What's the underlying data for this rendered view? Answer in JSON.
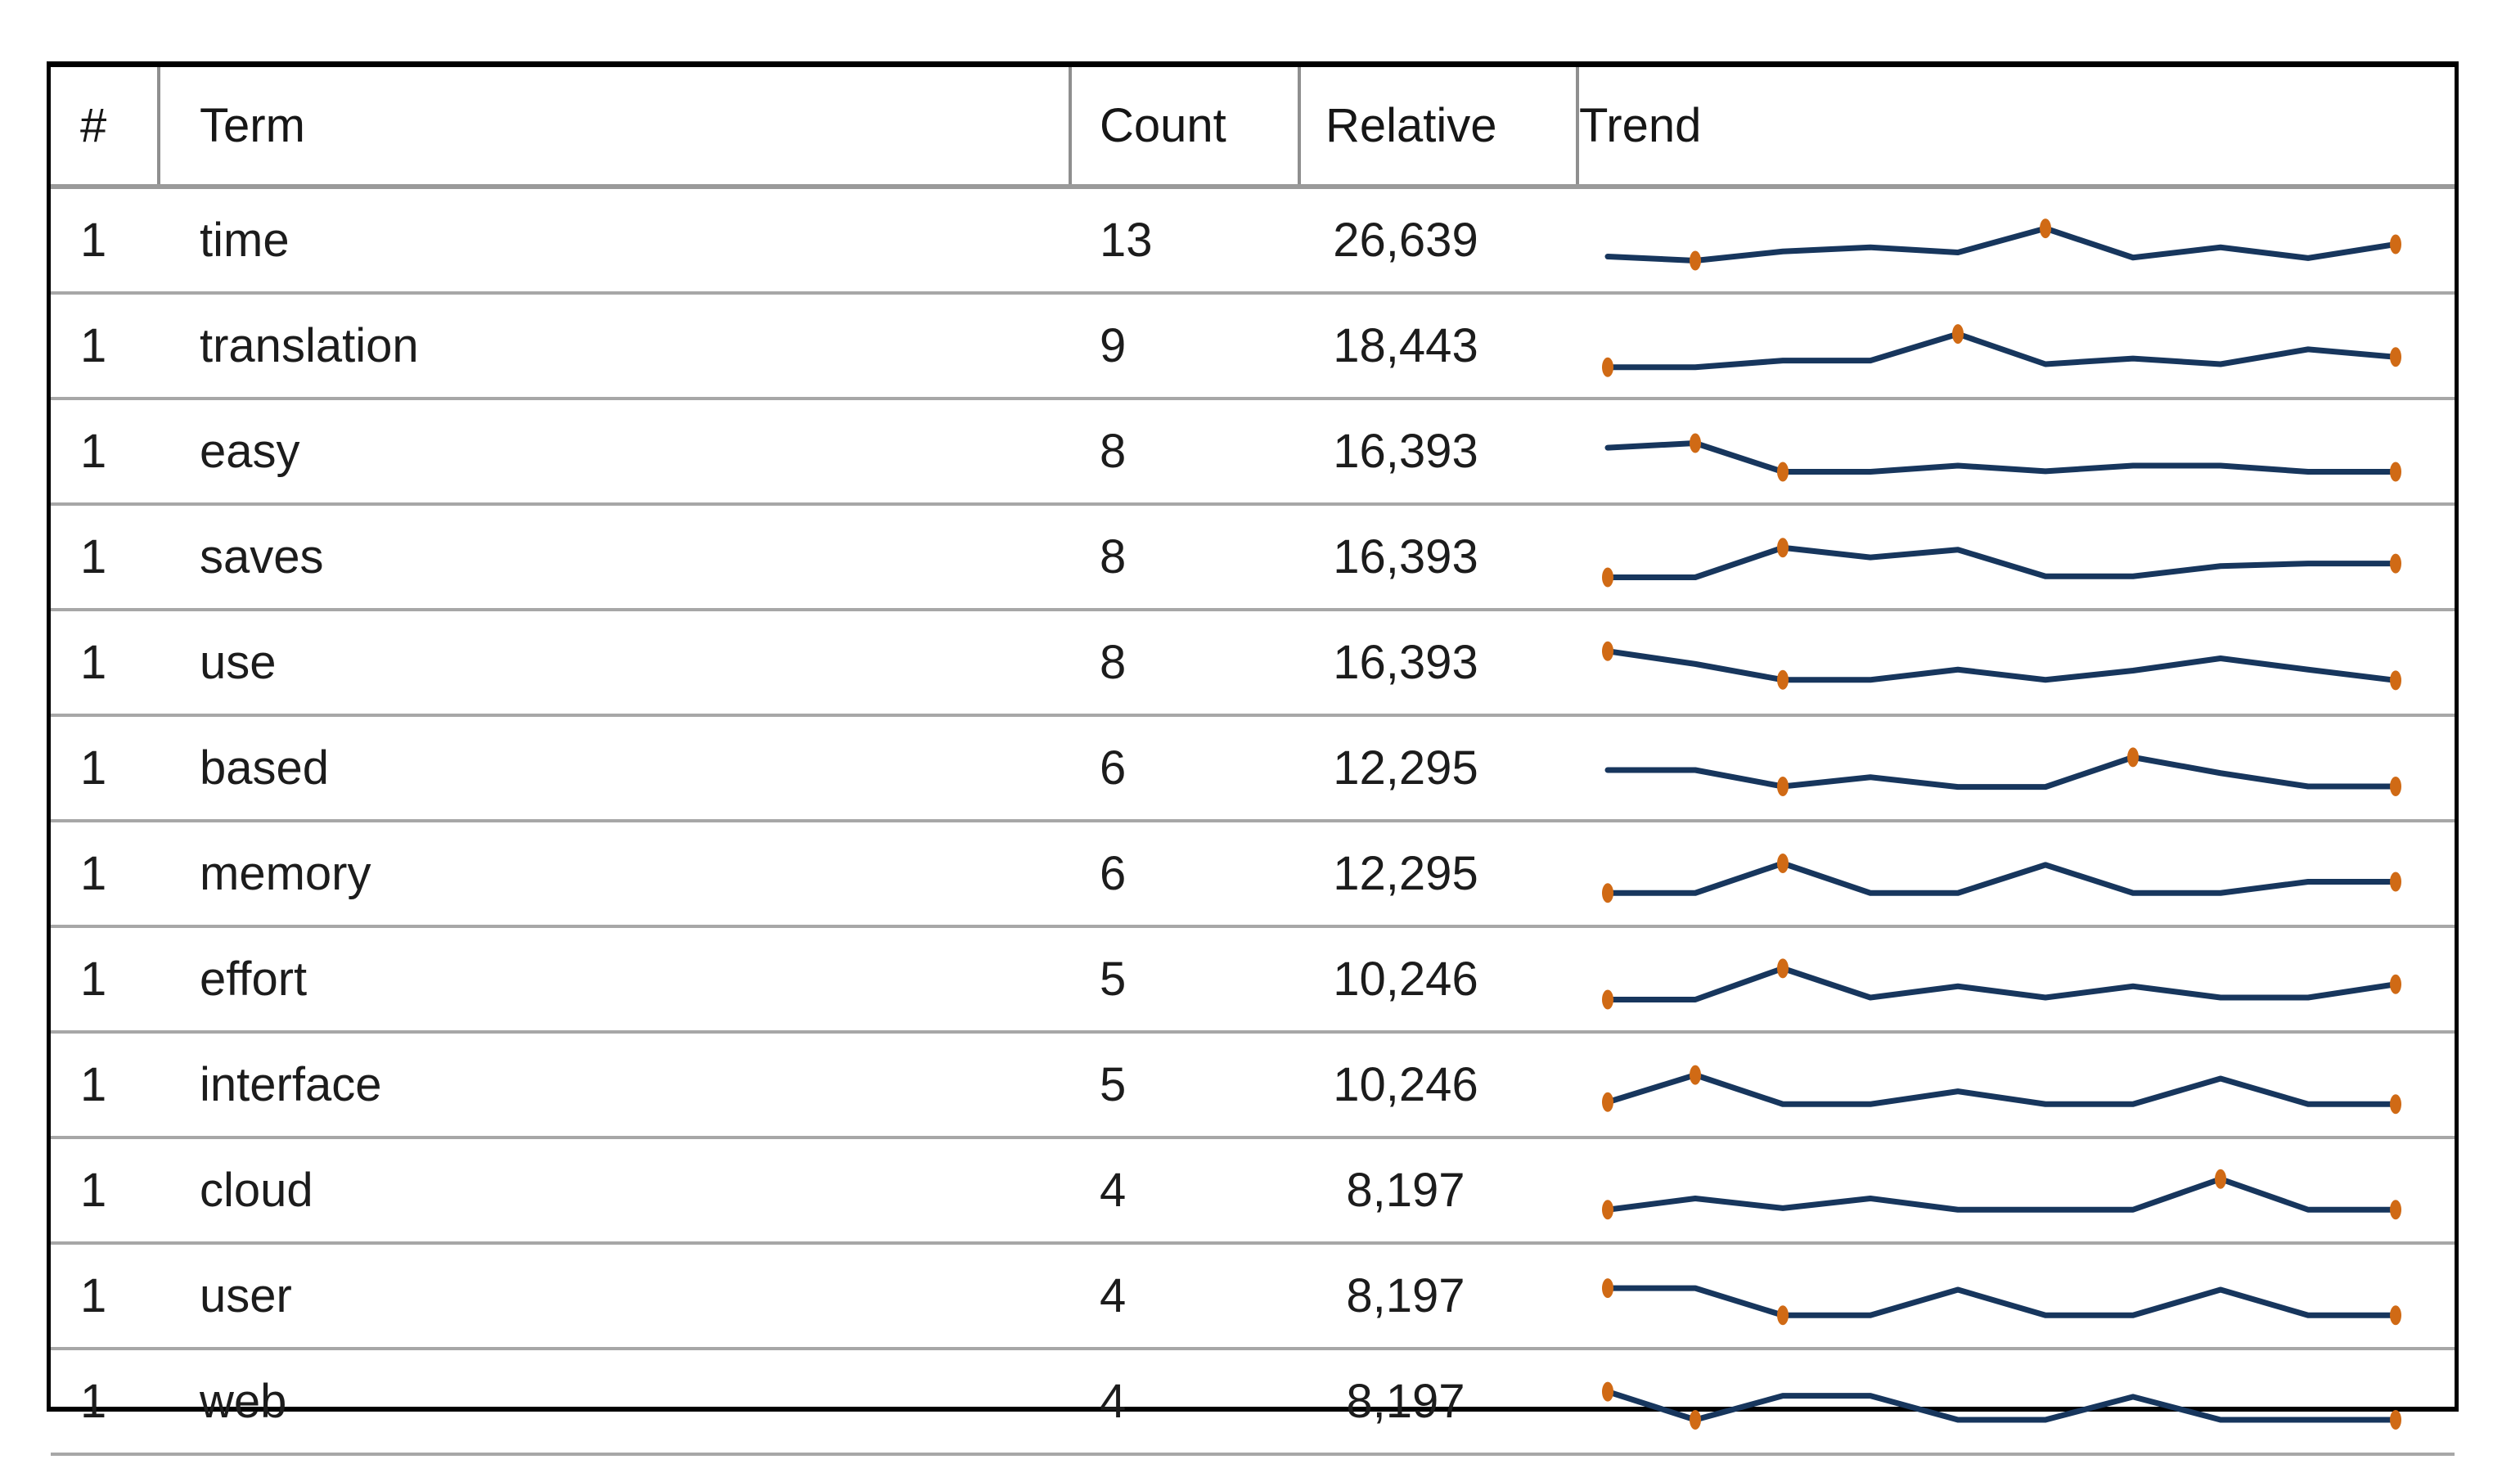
{
  "table": {
    "headers": {
      "rank": "#",
      "term": "Term",
      "count": "Count",
      "relative": "Relative",
      "trend": "Trend"
    },
    "rows": [
      {
        "rank": "1",
        "term": "time",
        "count": "13",
        "relative": "26,639",
        "trend": {
          "values": [
            1.0,
            0.6,
            1.5,
            1.9,
            1.4,
            3.75,
            0.9,
            1.9,
            0.85,
            2.2
          ],
          "markers": [
            1,
            5,
            9
          ]
        }
      },
      {
        "rank": "1",
        "term": "translation",
        "count": "9",
        "relative": "18,443",
        "trend": {
          "values": [
            0.5,
            0.5,
            1.15,
            1.15,
            3.75,
            0.8,
            1.35,
            0.8,
            2.25,
            1.5
          ],
          "markers": [
            0,
            4,
            9
          ]
        }
      },
      {
        "rank": "1",
        "term": "easy",
        "count": "8",
        "relative": "16,393",
        "trend": {
          "values": [
            2.95,
            3.4,
            0.6,
            0.6,
            1.2,
            0.65,
            1.2,
            1.2,
            0.6,
            0.6
          ],
          "markers": [
            1,
            2,
            9
          ]
        }
      },
      {
        "rank": "1",
        "term": "saves",
        "count": "8",
        "relative": "16,393",
        "trend": {
          "values": [
            0.6,
            0.6,
            3.5,
            2.55,
            3.3,
            0.7,
            0.7,
            1.7,
            1.95,
            1.95
          ],
          "markers": [
            0,
            2,
            9
          ]
        }
      },
      {
        "rank": "1",
        "term": "use",
        "count": "8",
        "relative": "16,393",
        "trend": {
          "values": [
            3.7,
            2.45,
            0.9,
            0.9,
            1.9,
            0.9,
            1.8,
            3.0,
            1.9,
            0.85
          ],
          "markers": [
            0,
            2,
            9
          ]
        }
      },
      {
        "rank": "1",
        "term": "based",
        "count": "6",
        "relative": "12,295",
        "trend": {
          "values": [
            2.4,
            2.4,
            0.8,
            1.7,
            0.75,
            0.75,
            3.65,
            2.1,
            0.8,
            0.8
          ],
          "markers": [
            2,
            6,
            9
          ]
        }
      },
      {
        "rank": "1",
        "term": "memory",
        "count": "6",
        "relative": "12,295",
        "trend": {
          "values": [
            0.7,
            0.7,
            3.6,
            0.7,
            0.7,
            3.45,
            0.7,
            0.7,
            1.8,
            1.8
          ],
          "markers": [
            0,
            2,
            9
          ]
        }
      },
      {
        "rank": "1",
        "term": "effort",
        "count": "5",
        "relative": "10,246",
        "trend": {
          "values": [
            0.6,
            0.6,
            3.65,
            0.8,
            1.9,
            0.8,
            1.9,
            0.8,
            0.8,
            2.1
          ],
          "markers": [
            0,
            2,
            9
          ]
        }
      },
      {
        "rank": "1",
        "term": "interface",
        "count": "5",
        "relative": "10,246",
        "trend": {
          "values": [
            0.9,
            3.55,
            0.7,
            0.7,
            1.95,
            0.7,
            0.7,
            3.2,
            0.7,
            0.7
          ],
          "markers": [
            0,
            1,
            9
          ]
        }
      },
      {
        "rank": "1",
        "term": "cloud",
        "count": "4",
        "relative": "8,197",
        "trend": {
          "values": [
            0.7,
            1.8,
            0.85,
            1.8,
            0.7,
            0.7,
            0.7,
            3.7,
            0.7,
            0.7
          ],
          "markers": [
            0,
            7,
            9
          ]
        }
      },
      {
        "rank": "1",
        "term": "user",
        "count": "4",
        "relative": "8,197",
        "trend": {
          "values": [
            3.35,
            3.35,
            0.7,
            0.7,
            3.2,
            0.7,
            0.7,
            3.2,
            0.7,
            0.7
          ],
          "markers": [
            0,
            2,
            9
          ]
        }
      },
      {
        "rank": "1",
        "term": "web",
        "count": "4",
        "relative": "8,197",
        "trend": {
          "values": [
            3.55,
            0.8,
            3.15,
            3.15,
            0.8,
            0.8,
            3.05,
            0.8,
            0.8,
            0.8
          ],
          "markers": [
            0,
            1,
            9
          ]
        }
      }
    ]
  },
  "sparkline": {
    "point_count": 10,
    "line_color": "#17365d",
    "marker_color": "#d06a15",
    "value_min": 0,
    "value_max": 4
  },
  "colors": {
    "table_border": "#000000",
    "row_separator": "#a7a7a7",
    "header_separator": "#8f8f8f",
    "text": "#1c1c1c",
    "background": "#ffffff"
  }
}
